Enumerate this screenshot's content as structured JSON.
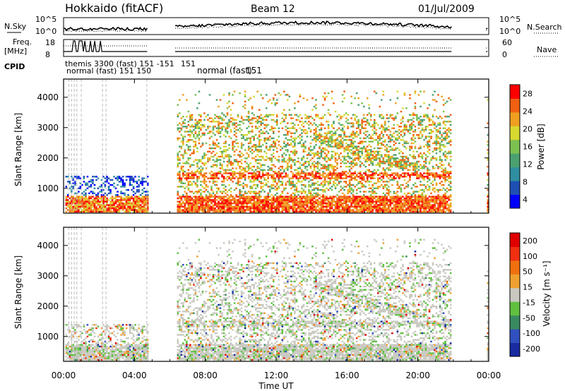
{
  "header": {
    "title": "Hokkaido (fitACF)",
    "beam": "Beam 12",
    "date": "01/Jul/2009"
  },
  "top_panel": {
    "left_label": "N.Sky",
    "left_ticks": [
      "10^5",
      "10^0"
    ],
    "right_ticks": [
      "10^5",
      "10^0"
    ],
    "right_label": "N.Search"
  },
  "freq_panel": {
    "left_label_1": "Freq.",
    "left_label_2": "[MHz]",
    "left_ticks": [
      "18",
      "8"
    ],
    "right_ticks": [
      "60",
      "0"
    ],
    "right_label": "Nave"
  },
  "cpid": {
    "label": "CPID",
    "early_text": "normal (fast) 151 150",
    "early_top_text": "themis 3300 (fast) 151 -151",
    "main_text": "normal (fast)",
    "main_id": "151"
  },
  "colors": {
    "power_low": "#0000ff",
    "power_high": "#ff0000",
    "ground_scatter": "#c8c8c0",
    "frame": "#000000"
  },
  "chart_data": [
    {
      "type": "heatmap",
      "title": "Power",
      "ylabel": "Slant Range [km]",
      "xlabel": "Time UT",
      "ylim": [
        180,
        4600
      ],
      "yticks": [
        "1000",
        "2000",
        "3000",
        "4000"
      ],
      "xticks": [
        "00:00",
        "04:00",
        "08:00",
        "12:00",
        "16:00",
        "20:00",
        "00:00"
      ],
      "colorbar_label": "Power [dB]",
      "colorbar_ticks": [
        "28",
        "24",
        "20",
        "16",
        "12",
        "8",
        "4"
      ],
      "colorbar_colors": [
        "#0000ff",
        "#1e50b4",
        "#2f8fa0",
        "#4ba070",
        "#7cc050",
        "#d8d830",
        "#f0a020",
        "#f06010",
        "#ff0000"
      ]
    },
    {
      "type": "heatmap",
      "title": "Velocity",
      "ylabel": "Slant Range [km]",
      "xlabel": "Time UT",
      "ylim": [
        180,
        4600
      ],
      "yticks": [
        "1000",
        "2000",
        "3000",
        "4000"
      ],
      "xticks": [
        "00:00",
        "04:00",
        "08:00",
        "12:00",
        "16:00",
        "20:00",
        "00:00"
      ],
      "colorbar_label": "Velocity [m s⁻¹]",
      "colorbar_ticks": [
        "200",
        "100",
        "50",
        "15",
        "-15",
        "-50",
        "-100",
        "-200"
      ],
      "colorbar_colors": [
        "#1a2aa0",
        "#3050c0",
        "#3a8a60",
        "#60c040",
        "#c8c8c0",
        "#f0a030",
        "#f07010",
        "#f03010",
        "#e00000"
      ]
    }
  ]
}
